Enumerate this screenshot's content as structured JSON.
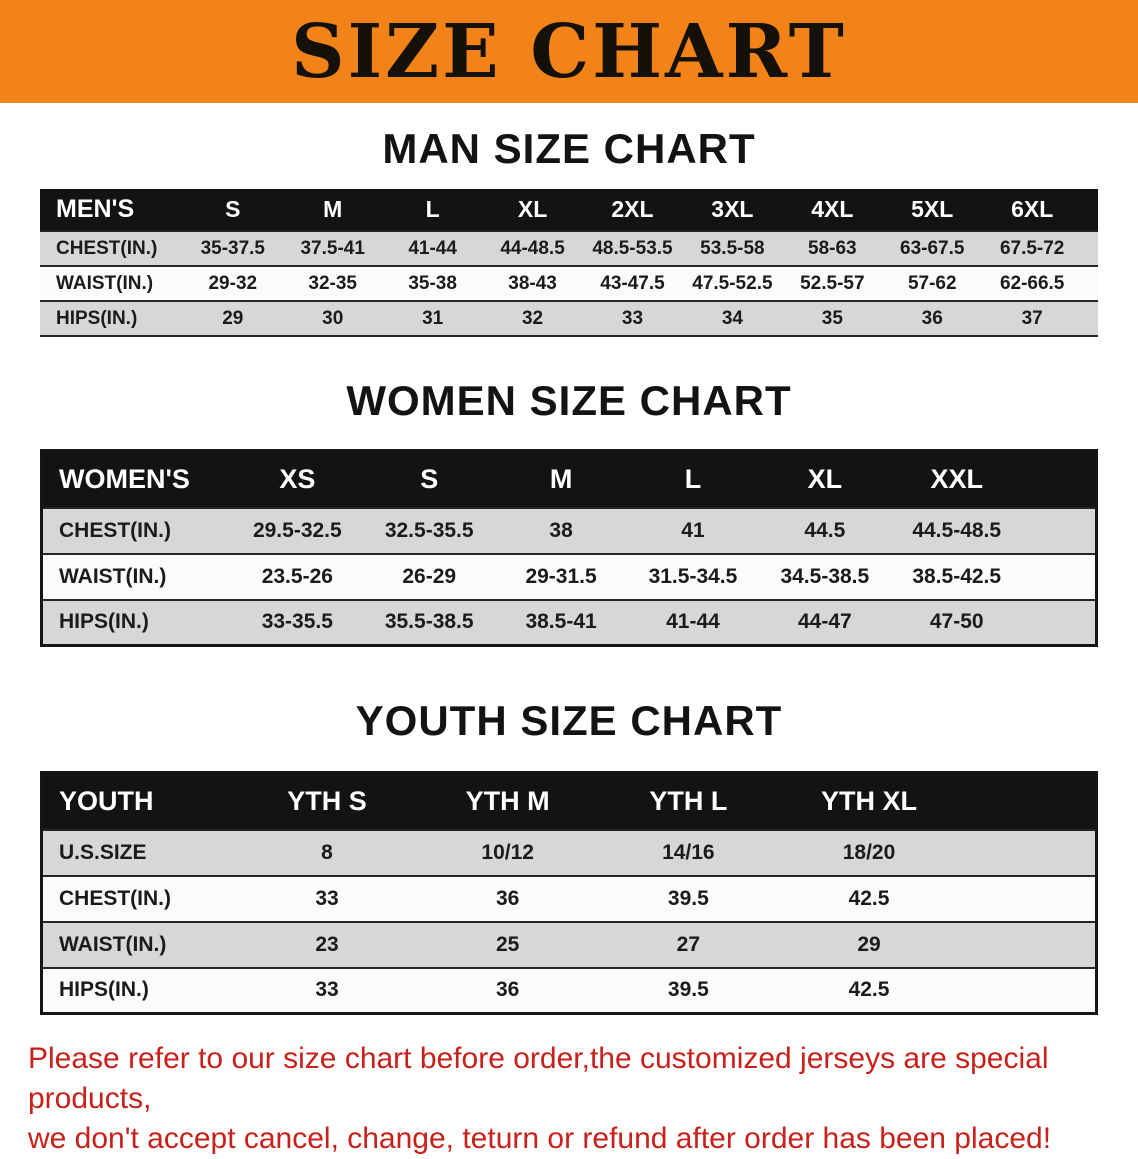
{
  "banner": {
    "title": "SIZE CHART"
  },
  "colors": {
    "banner_bg": "#F28318",
    "header_bg": "#131313",
    "row_alt": "#D7D7D7",
    "row_light": "#FBFBFB",
    "disclaimer_text": "#C9201A"
  },
  "sections": [
    {
      "key": "men",
      "heading": "MAN SIZE CHART",
      "table": {
        "title": "MEN'S",
        "columns": [
          "S",
          "M",
          "L",
          "XL",
          "2XL",
          "3XL",
          "4XL",
          "5XL",
          "6XL"
        ],
        "rows": [
          {
            "label": "CHEST(IN.)",
            "values": [
              "35-37.5",
              "37.5-41",
              "41-44",
              "44-48.5",
              "48.5-53.5",
              "53.5-58",
              "58-63",
              "63-67.5",
              "67.5-72"
            ]
          },
          {
            "label": "WAIST(IN.)",
            "values": [
              "29-32",
              "32-35",
              "35-38",
              "38-43",
              "43-47.5",
              "47.5-52.5",
              "52.5-57",
              "57-62",
              "62-66.5"
            ]
          },
          {
            "label": "HIPS(IN.)",
            "values": [
              "29",
              "30",
              "31",
              "32",
              "33",
              "34",
              "35",
              "36",
              "37"
            ]
          }
        ]
      }
    },
    {
      "key": "women",
      "heading": "WOMEN SIZE CHART",
      "table": {
        "title": "WOMEN'S",
        "columns": [
          "XS",
          "S",
          "M",
          "L",
          "XL",
          "XXL"
        ],
        "rows": [
          {
            "label": "CHEST(IN.)",
            "values": [
              "29.5-32.5",
              "32.5-35.5",
              "38",
              "41",
              "44.5",
              "44.5-48.5"
            ]
          },
          {
            "label": "WAIST(IN.)",
            "values": [
              "23.5-26",
              "26-29",
              "29-31.5",
              "31.5-34.5",
              "34.5-38.5",
              "38.5-42.5"
            ]
          },
          {
            "label": "HIPS(IN.)",
            "values": [
              "33-35.5",
              "35.5-38.5",
              "38.5-41",
              "41-44",
              "44-47",
              "47-50"
            ]
          }
        ]
      }
    },
    {
      "key": "youth",
      "heading": "YOUTH SIZE CHART",
      "table": {
        "title": "YOUTH",
        "columns": [
          "YTH S",
          "YTH M",
          "YTH L",
          "YTH XL"
        ],
        "rows": [
          {
            "label": "U.S.SIZE",
            "values": [
              "8",
              "10/12",
              "14/16",
              "18/20"
            ]
          },
          {
            "label": "CHEST(IN.)",
            "values": [
              "33",
              "36",
              "39.5",
              "42.5"
            ]
          },
          {
            "label": "WAIST(IN.)",
            "values": [
              "23",
              "25",
              "27",
              "29"
            ]
          },
          {
            "label": "HIPS(IN.)",
            "values": [
              "33",
              "36",
              "39.5",
              "42.5"
            ]
          }
        ]
      }
    }
  ],
  "disclaimer": {
    "lines": [
      "Please refer to our size chart before order,the customized jerseys are special products,",
      "we don't accept cancel, change, teturn or refund after order has been placed!"
    ]
  }
}
